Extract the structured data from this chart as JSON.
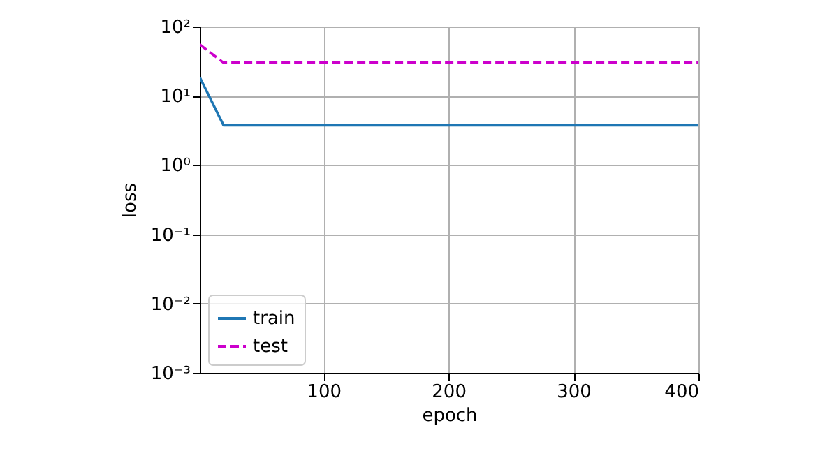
{
  "chart_data": {
    "type": "line",
    "xlabel": "epoch",
    "ylabel": "loss",
    "log": "y",
    "grid": true,
    "legend": "bottom left",
    "xlim": [
      1,
      400
    ],
    "xticks": [
      100,
      200,
      300,
      400
    ],
    "ylim": [
      0.001,
      100
    ],
    "yticks": [
      {
        "value": 0.001,
        "label": "10⁻³"
      },
      {
        "value": 0.01,
        "label": "10⁻²"
      },
      {
        "value": 0.1,
        "label": "10⁻¹"
      },
      {
        "value": 1,
        "label": "10⁰"
      },
      {
        "value": 10,
        "label": "10¹"
      },
      {
        "value": 100,
        "label": "10²"
      }
    ],
    "series": [
      {
        "name": "train",
        "color": "#1f77b4",
        "line_style": "solid",
        "x": [
          1,
          20,
          400
        ],
        "values": [
          18.5,
          3.76,
          3.76
        ]
      },
      {
        "name": "test",
        "color": "#cc00cc",
        "line_style": "dashed",
        "x": [
          1,
          20,
          400
        ],
        "values": [
          55,
          30,
          30
        ]
      }
    ]
  }
}
